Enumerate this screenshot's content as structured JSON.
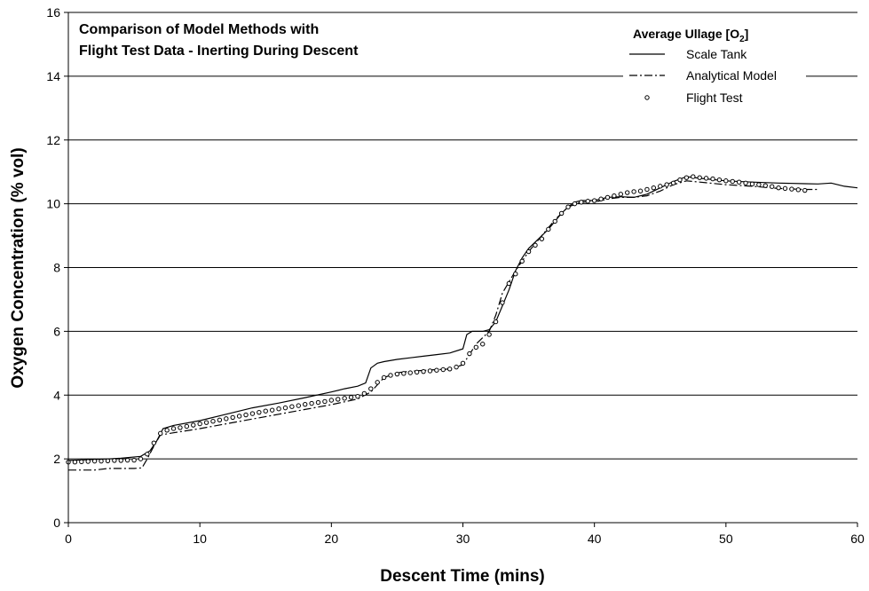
{
  "chart_data": {
    "type": "line",
    "title_lines": [
      "Comparison of Model Methods with",
      "Flight Test Data - Inerting During Descent"
    ],
    "xlabel": "Descent Time (mins)",
    "ylabel": "Oxygen Concentration (% vol)",
    "xlim": [
      0,
      60
    ],
    "ylim": [
      0,
      16
    ],
    "xticks": [
      0,
      10,
      20,
      30,
      40,
      50,
      60
    ],
    "yticks": [
      0,
      2,
      4,
      6,
      8,
      10,
      12,
      14,
      16
    ],
    "grid": "horizontal",
    "legend": {
      "title": "Average Ullage [O",
      "title_sub": "2",
      "title_end": "]",
      "placement": "top-right"
    },
    "series": [
      {
        "name": "Scale Tank",
        "style": "solid",
        "points": [
          [
            0,
            1.95
          ],
          [
            2,
            1.98
          ],
          [
            4,
            2.02
          ],
          [
            5.5,
            2.08
          ],
          [
            6.2,
            2.25
          ],
          [
            6.7,
            2.55
          ],
          [
            7.2,
            2.95
          ],
          [
            8,
            3.05
          ],
          [
            10,
            3.2
          ],
          [
            12,
            3.4
          ],
          [
            14,
            3.6
          ],
          [
            16,
            3.75
          ],
          [
            18,
            3.92
          ],
          [
            20,
            4.1
          ],
          [
            21,
            4.2
          ],
          [
            22,
            4.28
          ],
          [
            22.6,
            4.38
          ],
          [
            23,
            4.85
          ],
          [
            23.5,
            5.0
          ],
          [
            24,
            5.05
          ],
          [
            25,
            5.12
          ],
          [
            26,
            5.17
          ],
          [
            27,
            5.22
          ],
          [
            28,
            5.27
          ],
          [
            29,
            5.32
          ],
          [
            30,
            5.45
          ],
          [
            30.3,
            5.9
          ],
          [
            30.7,
            6.0
          ],
          [
            31.5,
            6.0
          ],
          [
            32,
            6.05
          ],
          [
            32.5,
            6.3
          ],
          [
            33,
            6.8
          ],
          [
            33.5,
            7.3
          ],
          [
            34,
            7.9
          ],
          [
            34.5,
            8.3
          ],
          [
            35,
            8.6
          ],
          [
            35.5,
            8.8
          ],
          [
            36,
            9.0
          ],
          [
            36.5,
            9.2
          ],
          [
            37,
            9.45
          ],
          [
            37.5,
            9.7
          ],
          [
            38,
            9.9
          ],
          [
            38.5,
            10.05
          ],
          [
            39,
            10.1
          ],
          [
            40,
            10.1
          ],
          [
            41,
            10.2
          ],
          [
            42,
            10.22
          ],
          [
            43,
            10.2
          ],
          [
            44,
            10.3
          ],
          [
            45,
            10.5
          ],
          [
            46,
            10.7
          ],
          [
            47,
            10.85
          ],
          [
            48,
            10.8
          ],
          [
            50,
            10.72
          ],
          [
            52,
            10.68
          ],
          [
            54,
            10.65
          ],
          [
            56,
            10.63
          ],
          [
            57,
            10.62
          ],
          [
            58,
            10.65
          ],
          [
            59,
            10.55
          ],
          [
            60,
            10.5
          ]
        ]
      },
      {
        "name": "Analytical Model",
        "style": "dashdot",
        "points": [
          [
            0,
            1.65
          ],
          [
            1,
            1.65
          ],
          [
            2,
            1.65
          ],
          [
            3,
            1.7
          ],
          [
            4,
            1.7
          ],
          [
            5,
            1.7
          ],
          [
            5.6,
            1.72
          ],
          [
            6,
            2.0
          ],
          [
            6.5,
            2.4
          ],
          [
            7,
            2.75
          ],
          [
            8,
            2.82
          ],
          [
            10,
            2.95
          ],
          [
            12,
            3.1
          ],
          [
            14,
            3.25
          ],
          [
            16,
            3.4
          ],
          [
            18,
            3.55
          ],
          [
            20,
            3.7
          ],
          [
            22,
            3.88
          ],
          [
            23,
            4.1
          ],
          [
            24,
            4.55
          ],
          [
            25,
            4.7
          ],
          [
            26,
            4.75
          ],
          [
            28,
            4.8
          ],
          [
            29,
            4.82
          ],
          [
            30,
            4.95
          ],
          [
            31,
            5.6
          ],
          [
            32,
            6.0
          ],
          [
            32.5,
            6.5
          ],
          [
            33,
            7.2
          ],
          [
            34,
            7.9
          ],
          [
            35,
            8.5
          ],
          [
            36,
            9.0
          ],
          [
            37,
            9.5
          ],
          [
            38,
            9.9
          ],
          [
            39,
            10.05
          ],
          [
            40,
            10.05
          ],
          [
            41,
            10.15
          ],
          [
            42,
            10.2
          ],
          [
            43,
            10.2
          ],
          [
            44,
            10.25
          ],
          [
            45,
            10.4
          ],
          [
            46,
            10.6
          ],
          [
            47,
            10.72
          ],
          [
            48,
            10.68
          ],
          [
            50,
            10.6
          ],
          [
            52,
            10.55
          ],
          [
            54,
            10.48
          ],
          [
            56,
            10.45
          ],
          [
            57,
            10.45
          ]
        ]
      },
      {
        "name": "Flight Test",
        "style": "markers",
        "points": [
          [
            0,
            1.9
          ],
          [
            0.5,
            1.9
          ],
          [
            1,
            1.91
          ],
          [
            1.5,
            1.92
          ],
          [
            2,
            1.93
          ],
          [
            2.5,
            1.93
          ],
          [
            3,
            1.94
          ],
          [
            3.5,
            1.95
          ],
          [
            4,
            1.95
          ],
          [
            4.5,
            1.96
          ],
          [
            5,
            1.96
          ],
          [
            5.5,
            2.0
          ],
          [
            6,
            2.15
          ],
          [
            6.5,
            2.5
          ],
          [
            7,
            2.8
          ],
          [
            7.5,
            2.9
          ],
          [
            8,
            2.95
          ],
          [
            8.5,
            2.98
          ],
          [
            9,
            3.02
          ],
          [
            9.5,
            3.06
          ],
          [
            10,
            3.1
          ],
          [
            10.5,
            3.14
          ],
          [
            11,
            3.18
          ],
          [
            11.5,
            3.22
          ],
          [
            12,
            3.26
          ],
          [
            12.5,
            3.3
          ],
          [
            13,
            3.34
          ],
          [
            13.5,
            3.38
          ],
          [
            14,
            3.42
          ],
          [
            14.5,
            3.46
          ],
          [
            15,
            3.5
          ],
          [
            15.5,
            3.53
          ],
          [
            16,
            3.57
          ],
          [
            16.5,
            3.6
          ],
          [
            17,
            3.64
          ],
          [
            17.5,
            3.67
          ],
          [
            18,
            3.71
          ],
          [
            18.5,
            3.74
          ],
          [
            19,
            3.77
          ],
          [
            19.5,
            3.8
          ],
          [
            20,
            3.84
          ],
          [
            20.5,
            3.87
          ],
          [
            21,
            3.9
          ],
          [
            21.5,
            3.93
          ],
          [
            22,
            3.96
          ],
          [
            22.5,
            4.05
          ],
          [
            23,
            4.2
          ],
          [
            23.5,
            4.4
          ],
          [
            24,
            4.55
          ],
          [
            24.5,
            4.62
          ],
          [
            25,
            4.66
          ],
          [
            25.5,
            4.68
          ],
          [
            26,
            4.7
          ],
          [
            26.5,
            4.72
          ],
          [
            27,
            4.74
          ],
          [
            27.5,
            4.76
          ],
          [
            28,
            4.78
          ],
          [
            28.5,
            4.8
          ],
          [
            29,
            4.82
          ],
          [
            29.5,
            4.88
          ],
          [
            30,
            5.0
          ],
          [
            30.5,
            5.3
          ],
          [
            31,
            5.5
          ],
          [
            31.5,
            5.6
          ],
          [
            32,
            5.9
          ],
          [
            32.5,
            6.3
          ],
          [
            33,
            6.9
          ],
          [
            33.5,
            7.5
          ],
          [
            34,
            7.8
          ],
          [
            34.5,
            8.2
          ],
          [
            35,
            8.5
          ],
          [
            35.5,
            8.7
          ],
          [
            36,
            8.9
          ],
          [
            36.5,
            9.2
          ],
          [
            37,
            9.45
          ],
          [
            37.5,
            9.7
          ],
          [
            38,
            9.9
          ],
          [
            38.5,
            10.0
          ],
          [
            39,
            10.05
          ],
          [
            39.5,
            10.08
          ],
          [
            40,
            10.1
          ],
          [
            40.5,
            10.15
          ],
          [
            41,
            10.2
          ],
          [
            41.5,
            10.25
          ],
          [
            42,
            10.3
          ],
          [
            42.5,
            10.35
          ],
          [
            43,
            10.38
          ],
          [
            43.5,
            10.4
          ],
          [
            44,
            10.45
          ],
          [
            44.5,
            10.5
          ],
          [
            45,
            10.55
          ],
          [
            45.5,
            10.6
          ],
          [
            46,
            10.65
          ],
          [
            46.5,
            10.75
          ],
          [
            47,
            10.82
          ],
          [
            47.5,
            10.85
          ],
          [
            48,
            10.82
          ],
          [
            48.5,
            10.8
          ],
          [
            49,
            10.78
          ],
          [
            49.5,
            10.75
          ],
          [
            50,
            10.72
          ],
          [
            50.5,
            10.7
          ],
          [
            51,
            10.68
          ],
          [
            51.5,
            10.65
          ],
          [
            52,
            10.62
          ],
          [
            52.5,
            10.6
          ],
          [
            53,
            10.57
          ],
          [
            53.5,
            10.54
          ],
          [
            54,
            10.5
          ],
          [
            54.5,
            10.48
          ],
          [
            55,
            10.46
          ],
          [
            55.5,
            10.44
          ],
          [
            56,
            10.42
          ]
        ]
      }
    ]
  }
}
